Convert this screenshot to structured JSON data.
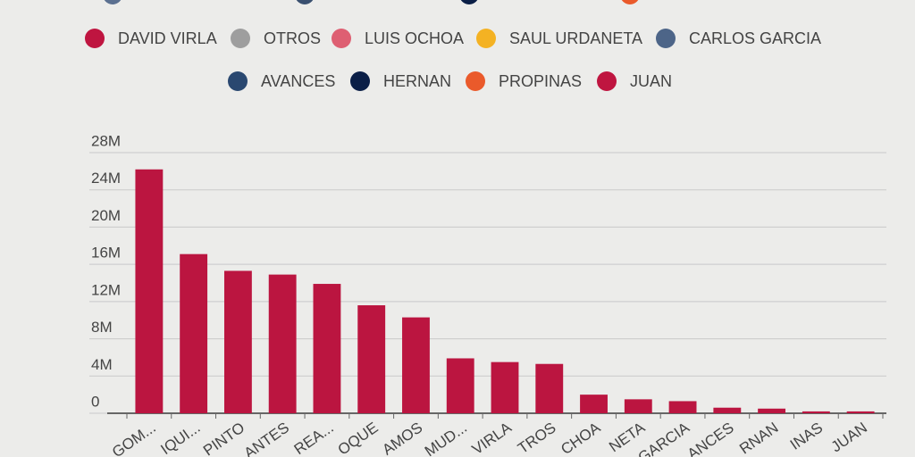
{
  "chart_data": {
    "type": "bar",
    "legend": [
      {
        "name": "DAVID VIRLA",
        "color": "#bf1540"
      },
      {
        "name": "OTROS",
        "color": "#9e9e9e"
      },
      {
        "name": "LUIS OCHOA",
        "color": "#de5f72"
      },
      {
        "name": "SAUL URDANETA",
        "color": "#f4b223"
      },
      {
        "name": "CARLOS GARCIA",
        "color": "#4d6588"
      },
      {
        "name": "AVANCES",
        "color": "#2a4870"
      },
      {
        "name": "HERNAN",
        "color": "#0b1f47"
      },
      {
        "name": "PROPINAS",
        "color": "#ea5a2b"
      },
      {
        "name": "JUAN",
        "color": "#bf1540"
      }
    ],
    "categories": [
      "GOM...",
      "IQUI...",
      "PINTO",
      "ANTES",
      "REA...",
      "OQUE",
      "AMOS",
      "MUD...",
      "VIRLA",
      "TROS",
      "CHOA",
      "NETA",
      "GARCIA",
      "ANCES",
      "RNAN",
      "INAS",
      "JUAN"
    ],
    "values": [
      26200000,
      17100000,
      15300000,
      14900000,
      13900000,
      11600000,
      10300000,
      5900000,
      5500000,
      5300000,
      2000000,
      1500000,
      1300000,
      600000,
      500000,
      200000,
      200000
    ],
    "color": "#bb1540",
    "ylim": [
      0,
      28000000
    ],
    "yticks": [
      {
        "value": 0,
        "label": "0"
      },
      {
        "value": 4000000,
        "label": "4M"
      },
      {
        "value": 8000000,
        "label": "8M"
      },
      {
        "value": 12000000,
        "label": "12M"
      },
      {
        "value": 16000000,
        "label": "16M"
      },
      {
        "value": 20000000,
        "label": "20M"
      },
      {
        "value": 24000000,
        "label": "24M"
      },
      {
        "value": 28000000,
        "label": "28M"
      }
    ],
    "grid": true
  }
}
